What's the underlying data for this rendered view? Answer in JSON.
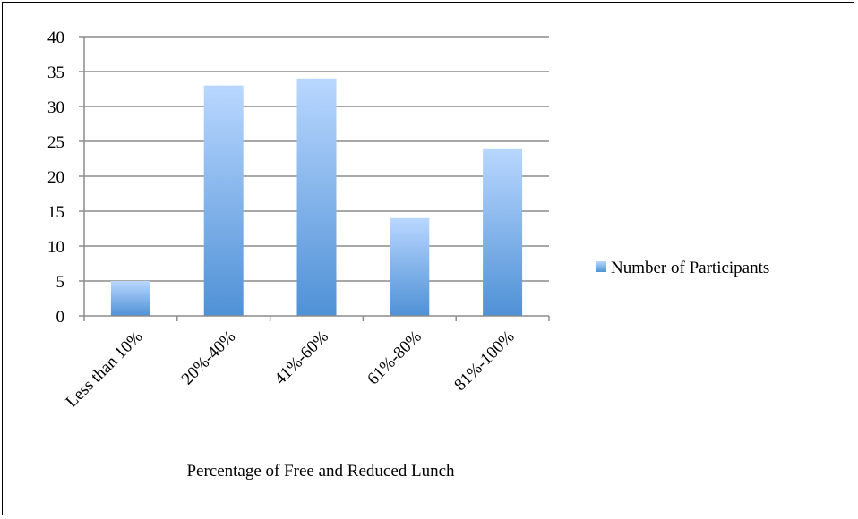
{
  "chart_data": {
    "type": "bar",
    "categories": [
      "Less than 10%",
      "20%-40%",
      "41%-60%",
      "61%-80%",
      "81%-100%"
    ],
    "series": [
      {
        "name": "Number of Participants",
        "values": [
          5,
          33,
          34,
          14,
          24
        ]
      }
    ],
    "title": "",
    "xlabel": "Percentage of Free and Reduced Lunch",
    "ylabel": "",
    "ylim": [
      0,
      40
    ],
    "yticks": [
      0,
      5,
      10,
      15,
      20,
      25,
      30,
      35,
      40
    ],
    "grid": true,
    "legend_position": "right",
    "colors": {
      "bar_top": "#b9d7ff",
      "bar_bottom": "#4f91d6",
      "grid": "#8c8c8c",
      "axis": "#8c8c8c"
    }
  }
}
